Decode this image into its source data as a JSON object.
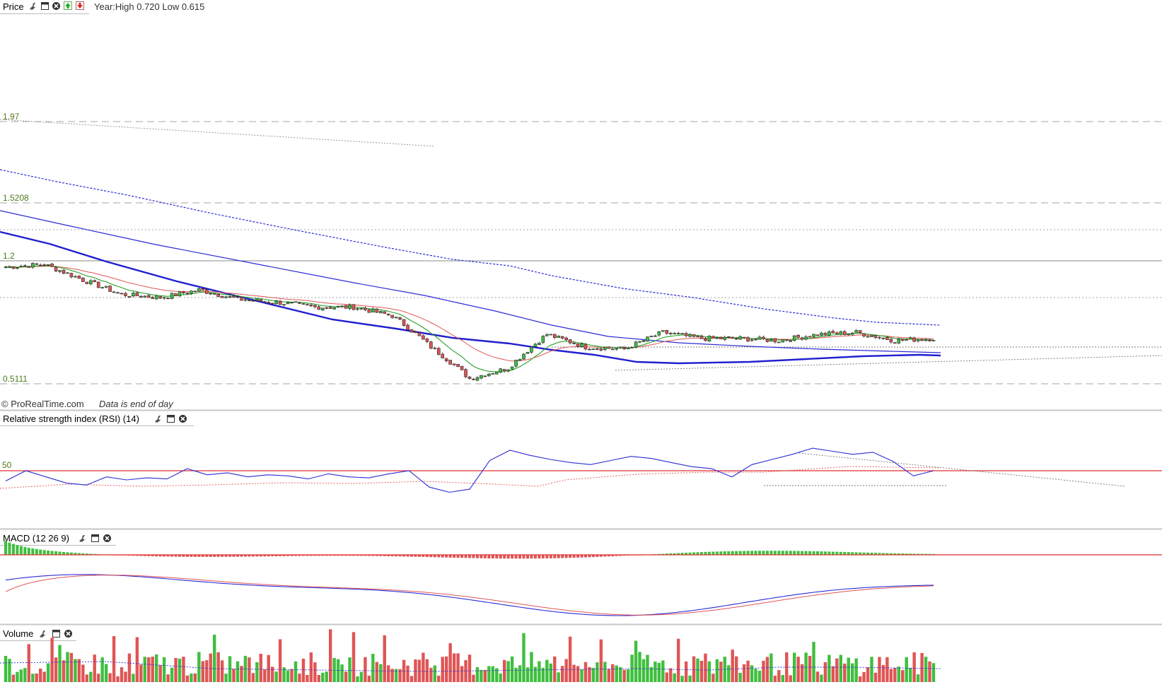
{
  "price_panel": {
    "title": "Price",
    "year_range_text": "Year:High 0.720 Low 0.615",
    "level_labels": [
      "1.97",
      "1.5208",
      "1.2",
      "0.5111"
    ],
    "footer_brand": "© ProRealTime.com",
    "footer_note": "Data is end of day",
    "icons": [
      "wrench-icon",
      "window-icon",
      "close-icon",
      "arrow-up-icon",
      "arrow-down-icon"
    ]
  },
  "rsi_panel": {
    "title": "Relative strength index (RSI) (14)",
    "level_label": "50",
    "icons": [
      "wrench-icon",
      "window-icon",
      "close-icon"
    ]
  },
  "macd_panel": {
    "title": "MACD (12 26 9)",
    "icons": [
      "wrench-icon",
      "window-icon",
      "close-icon"
    ]
  },
  "volume_panel": {
    "title": "Volume",
    "icons": [
      "wrench-icon",
      "window-icon",
      "close-icon"
    ]
  },
  "colors": {
    "up": "#3fbf3f",
    "down": "#e05555",
    "ma_fast": "#2aa02a",
    "ma_mid": "#e05555",
    "ma_slow": "#2b2bd6",
    "macd_line": "#2b2bd6",
    "signal_line": "#e05555",
    "rsi_line": "#2b2bd6",
    "level_text": "#4d7a1a",
    "reference_line": "#e03030"
  },
  "chart_data": [
    {
      "type": "candlestick",
      "panel": "price",
      "y_levels": [
        1.97,
        1.5208,
        1.2,
        0.5111
      ],
      "trend": [
        1.15,
        1.17,
        1.05,
        0.95,
        0.93,
        0.98,
        0.92,
        0.9,
        0.87,
        0.87,
        0.82,
        0.66,
        0.53,
        0.57,
        0.72,
        0.66,
        0.65,
        0.73,
        0.7,
        0.7,
        0.69,
        0.72,
        0.73,
        0.69,
        0.7
      ],
      "moving_averages": [
        "fast",
        "mid",
        "slow",
        "very-slow"
      ]
    },
    {
      "type": "line",
      "panel": "rsi",
      "reference_level": 50,
      "values": [
        40,
        50,
        44,
        38,
        36,
        44,
        41,
        43,
        42,
        52,
        46,
        48,
        44,
        46,
        45,
        42,
        47,
        44,
        43,
        47,
        50,
        34,
        29,
        32,
        60,
        70,
        65,
        61,
        58,
        56,
        60,
        64,
        62,
        58,
        54,
        52,
        44,
        56,
        61,
        66,
        72,
        69,
        66,
        68,
        59,
        45,
        50
      ]
    },
    {
      "type": "bar",
      "panel": "macd",
      "reference_level": 0
    },
    {
      "type": "bar",
      "panel": "volume"
    }
  ]
}
